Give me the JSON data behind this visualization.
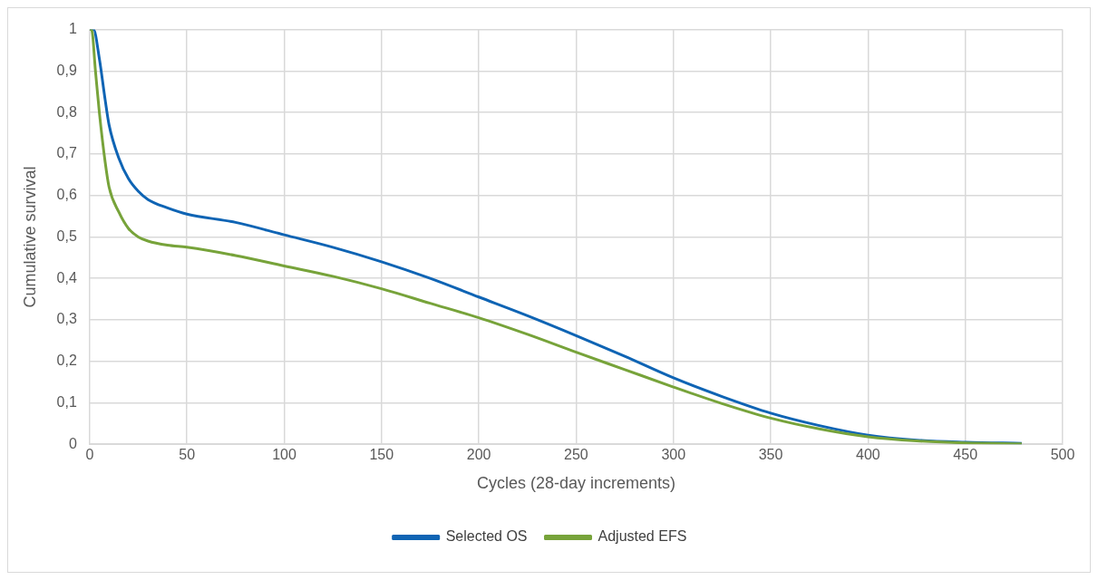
{
  "chart_data": {
    "type": "line",
    "xlabel": "Cycles (28-day increments)",
    "ylabel": "Cumulative survival",
    "xlim": [
      0,
      500
    ],
    "xticks": [
      0,
      50,
      100,
      150,
      200,
      250,
      300,
      350,
      400,
      450,
      500
    ],
    "ylim": [
      0,
      1
    ],
    "yticks": [
      0,
      {
        "value": 0.1,
        "label": "0,1"
      },
      {
        "value": 0.2,
        "label": "0,2"
      },
      {
        "value": 0.3,
        "label": "0,3"
      },
      {
        "value": 0.4,
        "label": "0,4"
      },
      {
        "value": 0.5,
        "label": "0,5"
      },
      {
        "value": 0.6,
        "label": "0,6"
      },
      {
        "value": 0.7,
        "label": "0,7"
      },
      {
        "value": 0.8,
        "label": "0,8"
      },
      {
        "value": 0.9,
        "label": "0,9"
      },
      1
    ],
    "grid": true,
    "legend": "bottom",
    "marker": "none",
    "line_style": "solid",
    "series": [
      {
        "name": "Selected OS",
        "color": "#0f64b4",
        "x": [
          0,
          2,
          5,
          8,
          10,
          15,
          20,
          25,
          30,
          40,
          50,
          75,
          100,
          125,
          150,
          175,
          200,
          225,
          250,
          275,
          300,
          325,
          350,
          375,
          400,
          425,
          450,
          479
        ],
        "values": [
          1,
          1,
          0.93,
          0.83,
          0.77,
          0.69,
          0.64,
          0.61,
          0.59,
          0.57,
          0.555,
          0.535,
          0.505,
          0.475,
          0.44,
          0.4,
          0.355,
          0.31,
          0.262,
          0.212,
          0.16,
          0.115,
          0.075,
          0.045,
          0.022,
          0.01,
          0.005,
          0.002
        ]
      },
      {
        "name": "Adjusted EFS",
        "color": "#77a33a",
        "x": [
          0,
          1,
          3,
          5,
          8,
          10,
          15,
          20,
          25,
          30,
          40,
          50,
          75,
          100,
          125,
          150,
          175,
          200,
          225,
          250,
          275,
          300,
          325,
          350,
          375,
          400,
          425,
          450,
          479
        ],
        "values": [
          1,
          1,
          0.9,
          0.8,
          0.68,
          0.62,
          0.56,
          0.52,
          0.5,
          0.49,
          0.48,
          0.475,
          0.455,
          0.43,
          0.405,
          0.375,
          0.34,
          0.305,
          0.265,
          0.222,
          0.18,
          0.138,
          0.098,
          0.063,
          0.037,
          0.018,
          0.008,
          0.003,
          0.001
        ]
      }
    ]
  }
}
